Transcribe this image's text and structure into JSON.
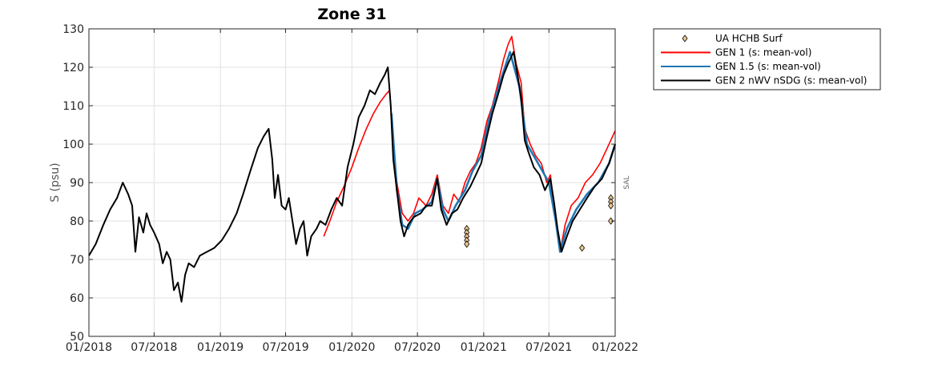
{
  "chart_data": {
    "type": "line",
    "title": "Zone 31",
    "ylabel": "S (psu)",
    "side_label": "SAL",
    "xlim": [
      "2018-01-01",
      "2022-01-01"
    ],
    "ylim": [
      50,
      130
    ],
    "grid": true,
    "legend_position": "outside-top-right",
    "x_ticks": [
      {
        "date": "2018-01-01",
        "label": "01/2018"
      },
      {
        "date": "2018-07-01",
        "label": "07/2018"
      },
      {
        "date": "2019-01-01",
        "label": "01/2019"
      },
      {
        "date": "2019-07-01",
        "label": "07/2019"
      },
      {
        "date": "2020-01-01",
        "label": "01/2020"
      },
      {
        "date": "2020-07-01",
        "label": "07/2020"
      },
      {
        "date": "2021-01-01",
        "label": "01/2021"
      },
      {
        "date": "2021-07-01",
        "label": "07/2021"
      },
      {
        "date": "2022-01-01",
        "label": "01/2022"
      }
    ],
    "y_ticks": [
      50,
      60,
      70,
      80,
      90,
      100,
      110,
      120,
      130
    ],
    "series": [
      {
        "name": "UA HCHB Surf",
        "kind": "markers",
        "marker": "diamond",
        "color": "#f2c98f",
        "edge_color": "#000000",
        "points": [
          {
            "x": "2020-11-15",
            "y": 78
          },
          {
            "x": "2020-11-15",
            "y": 77
          },
          {
            "x": "2020-11-15",
            "y": 76
          },
          {
            "x": "2020-11-15",
            "y": 75
          },
          {
            "x": "2020-11-15",
            "y": 74
          },
          {
            "x": "2021-10-01",
            "y": 73
          },
          {
            "x": "2021-12-20",
            "y": 86
          },
          {
            "x": "2021-12-20",
            "y": 85
          },
          {
            "x": "2021-12-20",
            "y": 84
          },
          {
            "x": "2021-12-20",
            "y": 80
          }
        ]
      },
      {
        "name": "GEN 1 (s: mean-vol)",
        "kind": "line",
        "color": "#ff0000",
        "points": [
          {
            "x": "2019-10-15",
            "y": 76
          },
          {
            "x": "2019-11-01",
            "y": 80
          },
          {
            "x": "2019-11-20",
            "y": 85
          },
          {
            "x": "2019-12-10",
            "y": 89
          },
          {
            "x": "2020-01-01",
            "y": 94
          },
          {
            "x": "2020-01-20",
            "y": 99
          },
          {
            "x": "2020-02-10",
            "y": 104
          },
          {
            "x": "2020-03-01",
            "y": 108
          },
          {
            "x": "2020-03-20",
            "y": 111
          },
          {
            "x": "2020-04-05",
            "y": 113
          },
          {
            "x": "2020-04-15",
            "y": 114
          },
          {
            "x": "2020-04-25",
            "y": 100
          },
          {
            "x": "2020-05-05",
            "y": 90
          },
          {
            "x": "2020-05-20",
            "y": 82
          },
          {
            "x": "2020-06-05",
            "y": 80
          },
          {
            "x": "2020-06-20",
            "y": 82
          },
          {
            "x": "2020-07-05",
            "y": 86
          },
          {
            "x": "2020-07-25",
            "y": 84
          },
          {
            "x": "2020-08-10",
            "y": 87
          },
          {
            "x": "2020-08-25",
            "y": 92
          },
          {
            "x": "2020-09-10",
            "y": 84
          },
          {
            "x": "2020-09-25",
            "y": 82
          },
          {
            "x": "2020-10-10",
            "y": 87
          },
          {
            "x": "2020-10-25",
            "y": 85
          },
          {
            "x": "2020-11-10",
            "y": 90
          },
          {
            "x": "2020-11-25",
            "y": 93
          },
          {
            "x": "2020-12-10",
            "y": 95
          },
          {
            "x": "2020-12-25",
            "y": 99
          },
          {
            "x": "2021-01-10",
            "y": 106
          },
          {
            "x": "2021-01-25",
            "y": 110
          },
          {
            "x": "2021-02-10",
            "y": 116
          },
          {
            "x": "2021-02-25",
            "y": 122
          },
          {
            "x": "2021-03-10",
            "y": 126
          },
          {
            "x": "2021-03-20",
            "y": 128
          },
          {
            "x": "2021-04-01",
            "y": 121
          },
          {
            "x": "2021-04-15",
            "y": 116
          },
          {
            "x": "2021-04-25",
            "y": 104
          },
          {
            "x": "2021-05-10",
            "y": 100
          },
          {
            "x": "2021-05-25",
            "y": 97
          },
          {
            "x": "2021-06-10",
            "y": 95
          },
          {
            "x": "2021-06-25",
            "y": 90
          },
          {
            "x": "2021-07-05",
            "y": 92
          },
          {
            "x": "2021-07-20",
            "y": 80
          },
          {
            "x": "2021-08-01",
            "y": 72
          },
          {
            "x": "2021-08-15",
            "y": 79
          },
          {
            "x": "2021-09-01",
            "y": 84
          },
          {
            "x": "2021-09-20",
            "y": 86
          },
          {
            "x": "2021-10-10",
            "y": 90
          },
          {
            "x": "2021-10-30",
            "y": 92
          },
          {
            "x": "2021-11-20",
            "y": 95
          },
          {
            "x": "2021-12-10",
            "y": 99
          },
          {
            "x": "2022-01-01",
            "y": 103.5
          }
        ]
      },
      {
        "name": "GEN 1.5 (s: mean-vol)",
        "kind": "line",
        "color": "#1f77b4",
        "points": [
          {
            "x": "2020-04-20",
            "y": 108
          },
          {
            "x": "2020-05-05",
            "y": 88
          },
          {
            "x": "2020-05-20",
            "y": 79
          },
          {
            "x": "2020-06-05",
            "y": 78
          },
          {
            "x": "2020-06-25",
            "y": 82
          },
          {
            "x": "2020-07-15",
            "y": 83
          },
          {
            "x": "2020-08-10",
            "y": 85
          },
          {
            "x": "2020-08-25",
            "y": 91
          },
          {
            "x": "2020-09-10",
            "y": 83
          },
          {
            "x": "2020-09-25",
            "y": 80
          },
          {
            "x": "2020-10-15",
            "y": 84
          },
          {
            "x": "2020-11-10",
            "y": 88
          },
          {
            "x": "2020-12-01",
            "y": 93
          },
          {
            "x": "2020-12-25",
            "y": 97
          },
          {
            "x": "2021-01-15",
            "y": 106
          },
          {
            "x": "2021-02-15",
            "y": 116
          },
          {
            "x": "2021-03-15",
            "y": 124
          },
          {
            "x": "2021-04-10",
            "y": 115
          },
          {
            "x": "2021-05-01",
            "y": 100
          },
          {
            "x": "2021-06-01",
            "y": 95
          },
          {
            "x": "2021-07-01",
            "y": 90
          },
          {
            "x": "2021-07-20",
            "y": 80
          },
          {
            "x": "2021-08-01",
            "y": 72
          },
          {
            "x": "2021-08-20",
            "y": 78
          },
          {
            "x": "2021-09-15",
            "y": 83
          },
          {
            "x": "2021-10-15",
            "y": 87
          },
          {
            "x": "2021-11-15",
            "y": 90
          },
          {
            "x": "2021-12-15",
            "y": 95
          },
          {
            "x": "2022-01-01",
            "y": 100
          }
        ]
      },
      {
        "name": "GEN 2 nWV nSDG (s: mean-vol)",
        "kind": "line",
        "color": "#000000",
        "points": [
          {
            "x": "2018-01-01",
            "y": 71
          },
          {
            "x": "2018-01-20",
            "y": 74
          },
          {
            "x": "2018-02-10",
            "y": 79
          },
          {
            "x": "2018-03-01",
            "y": 83
          },
          {
            "x": "2018-03-20",
            "y": 86
          },
          {
            "x": "2018-04-05",
            "y": 90
          },
          {
            "x": "2018-04-20",
            "y": 87
          },
          {
            "x": "2018-05-01",
            "y": 84
          },
          {
            "x": "2018-05-10",
            "y": 72
          },
          {
            "x": "2018-05-20",
            "y": 81
          },
          {
            "x": "2018-06-01",
            "y": 77
          },
          {
            "x": "2018-06-10",
            "y": 82
          },
          {
            "x": "2018-06-20",
            "y": 79
          },
          {
            "x": "2018-07-01",
            "y": 77
          },
          {
            "x": "2018-07-15",
            "y": 74
          },
          {
            "x": "2018-07-25",
            "y": 69
          },
          {
            "x": "2018-08-05",
            "y": 72
          },
          {
            "x": "2018-08-15",
            "y": 70
          },
          {
            "x": "2018-08-25",
            "y": 62
          },
          {
            "x": "2018-09-05",
            "y": 64
          },
          {
            "x": "2018-09-15",
            "y": 59
          },
          {
            "x": "2018-09-25",
            "y": 66
          },
          {
            "x": "2018-10-05",
            "y": 69
          },
          {
            "x": "2018-10-20",
            "y": 68
          },
          {
            "x": "2018-11-05",
            "y": 71
          },
          {
            "x": "2018-11-25",
            "y": 72
          },
          {
            "x": "2018-12-15",
            "y": 73
          },
          {
            "x": "2019-01-05",
            "y": 75
          },
          {
            "x": "2019-01-25",
            "y": 78
          },
          {
            "x": "2019-02-15",
            "y": 82
          },
          {
            "x": "2019-03-05",
            "y": 87
          },
          {
            "x": "2019-03-25",
            "y": 93
          },
          {
            "x": "2019-04-15",
            "y": 99
          },
          {
            "x": "2019-05-01",
            "y": 102
          },
          {
            "x": "2019-05-15",
            "y": 104
          },
          {
            "x": "2019-05-25",
            "y": 96
          },
          {
            "x": "2019-06-01",
            "y": 86
          },
          {
            "x": "2019-06-10",
            "y": 92
          },
          {
            "x": "2019-06-20",
            "y": 84
          },
          {
            "x": "2019-07-01",
            "y": 83
          },
          {
            "x": "2019-07-10",
            "y": 86
          },
          {
            "x": "2019-07-20",
            "y": 80
          },
          {
            "x": "2019-07-30",
            "y": 74
          },
          {
            "x": "2019-08-10",
            "y": 78
          },
          {
            "x": "2019-08-20",
            "y": 80
          },
          {
            "x": "2019-08-30",
            "y": 71
          },
          {
            "x": "2019-09-10",
            "y": 76
          },
          {
            "x": "2019-09-25",
            "y": 78
          },
          {
            "x": "2019-10-05",
            "y": 80
          },
          {
            "x": "2019-10-20",
            "y": 79
          },
          {
            "x": "2019-11-05",
            "y": 83
          },
          {
            "x": "2019-11-20",
            "y": 86
          },
          {
            "x": "2019-12-05",
            "y": 84
          },
          {
            "x": "2019-12-20",
            "y": 94
          },
          {
            "x": "2020-01-05",
            "y": 100
          },
          {
            "x": "2020-01-20",
            "y": 107
          },
          {
            "x": "2020-02-05",
            "y": 110
          },
          {
            "x": "2020-02-20",
            "y": 114
          },
          {
            "x": "2020-03-05",
            "y": 113
          },
          {
            "x": "2020-03-20",
            "y": 116
          },
          {
            "x": "2020-04-01",
            "y": 118
          },
          {
            "x": "2020-04-10",
            "y": 120
          },
          {
            "x": "2020-04-18",
            "y": 110
          },
          {
            "x": "2020-04-25",
            "y": 96
          },
          {
            "x": "2020-05-05",
            "y": 88
          },
          {
            "x": "2020-05-15",
            "y": 80
          },
          {
            "x": "2020-05-25",
            "y": 76
          },
          {
            "x": "2020-06-05",
            "y": 79
          },
          {
            "x": "2020-06-20",
            "y": 81
          },
          {
            "x": "2020-07-10",
            "y": 82
          },
          {
            "x": "2020-07-25",
            "y": 84
          },
          {
            "x": "2020-08-10",
            "y": 84
          },
          {
            "x": "2020-08-25",
            "y": 91
          },
          {
            "x": "2020-09-05",
            "y": 83
          },
          {
            "x": "2020-09-20",
            "y": 79
          },
          {
            "x": "2020-10-05",
            "y": 82
          },
          {
            "x": "2020-10-20",
            "y": 83
          },
          {
            "x": "2020-11-05",
            "y": 86
          },
          {
            "x": "2020-11-25",
            "y": 89
          },
          {
            "x": "2020-12-10",
            "y": 92
          },
          {
            "x": "2020-12-25",
            "y": 95
          },
          {
            "x": "2021-01-10",
            "y": 102
          },
          {
            "x": "2021-01-25",
            "y": 108
          },
          {
            "x": "2021-02-10",
            "y": 113
          },
          {
            "x": "2021-02-25",
            "y": 118
          },
          {
            "x": "2021-03-10",
            "y": 121
          },
          {
            "x": "2021-03-25",
            "y": 124
          },
          {
            "x": "2021-04-05",
            "y": 118
          },
          {
            "x": "2021-04-15",
            "y": 112
          },
          {
            "x": "2021-04-25",
            "y": 101
          },
          {
            "x": "2021-05-05",
            "y": 98
          },
          {
            "x": "2021-05-20",
            "y": 94
          },
          {
            "x": "2021-06-05",
            "y": 92
          },
          {
            "x": "2021-06-20",
            "y": 88
          },
          {
            "x": "2021-07-05",
            "y": 91
          },
          {
            "x": "2021-07-15",
            "y": 85
          },
          {
            "x": "2021-07-25",
            "y": 78
          },
          {
            "x": "2021-08-05",
            "y": 72
          },
          {
            "x": "2021-08-20",
            "y": 76
          },
          {
            "x": "2021-09-05",
            "y": 80
          },
          {
            "x": "2021-09-25",
            "y": 83
          },
          {
            "x": "2021-10-15",
            "y": 86
          },
          {
            "x": "2021-11-05",
            "y": 89
          },
          {
            "x": "2021-11-25",
            "y": 91
          },
          {
            "x": "2021-12-15",
            "y": 95
          },
          {
            "x": "2022-01-01",
            "y": 100
          }
        ]
      }
    ]
  }
}
